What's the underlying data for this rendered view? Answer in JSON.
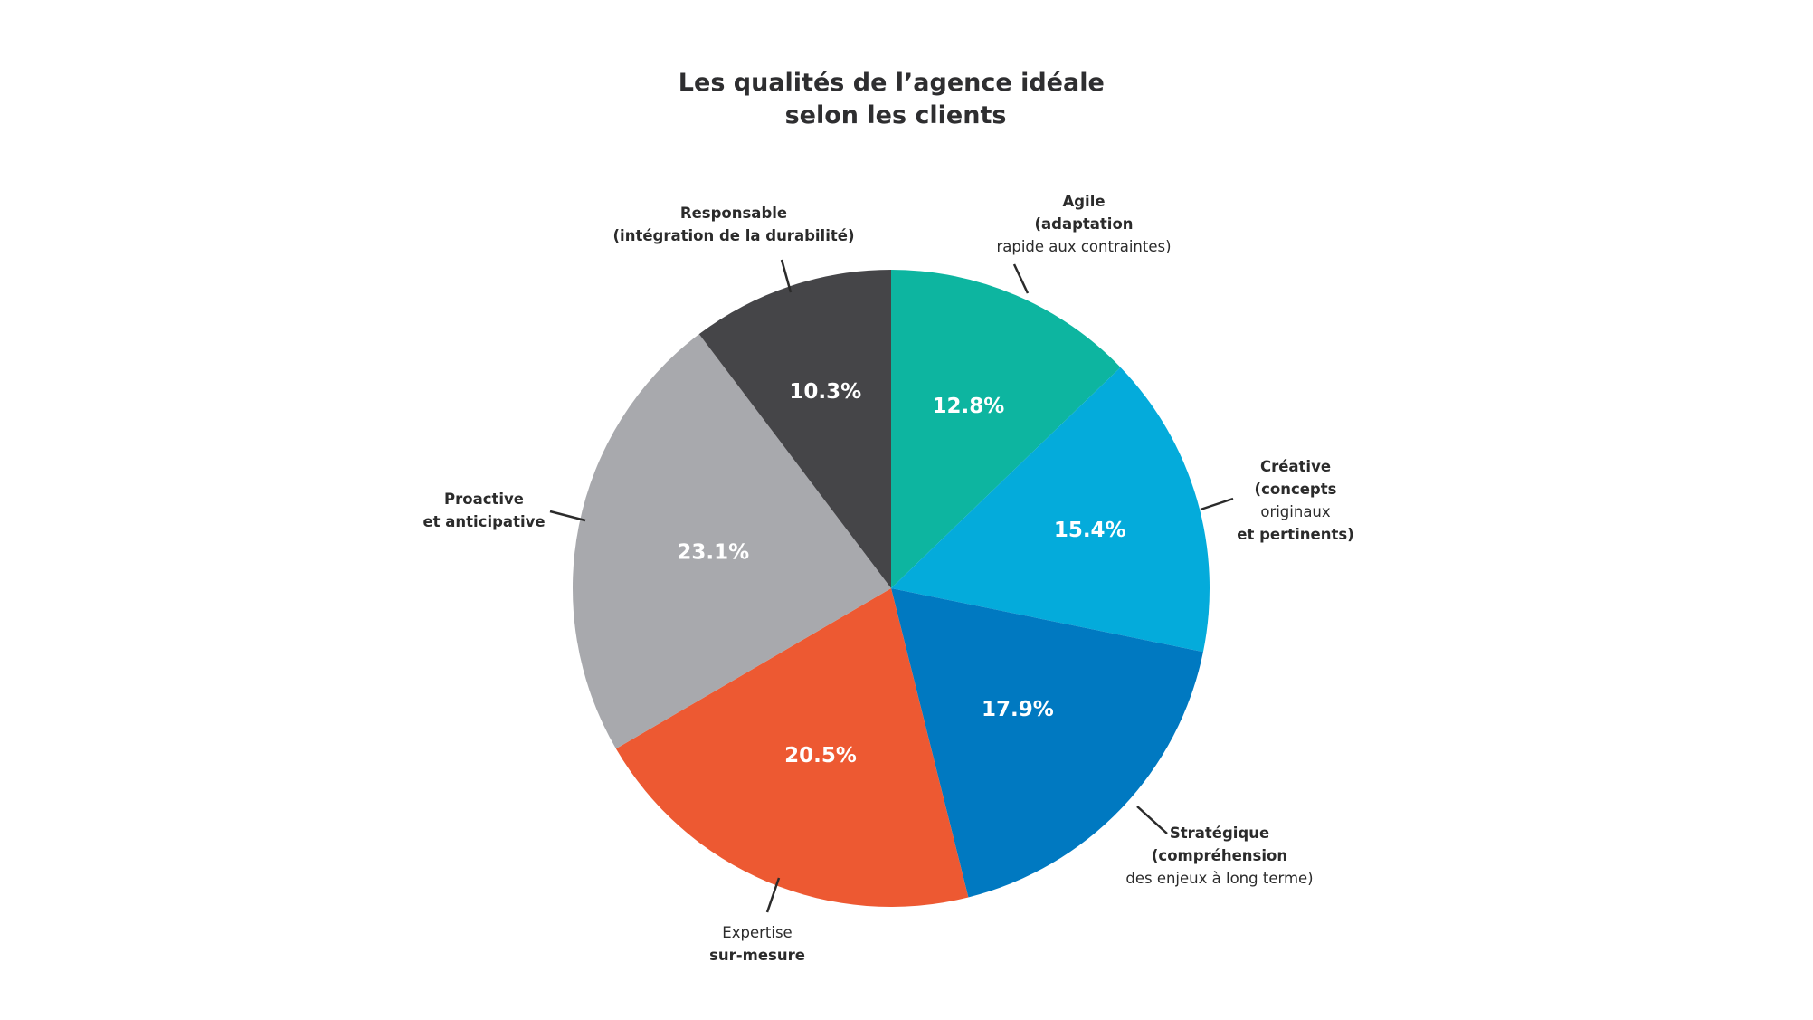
{
  "chart_data": {
    "type": "pie",
    "title_lines": [
      "Les qualités de l’agence idéale",
      "selon les clients"
    ],
    "start": "12 o'clock",
    "direction": "clockwise",
    "slices": [
      {
        "label_lines": [
          "Agile",
          "(adaptation",
          "rapide aux contraintes)"
        ],
        "value": 12.8,
        "value_label": "12.8%",
        "color": "#0db5a0"
      },
      {
        "label_lines": [
          "Créative",
          "(concepts",
          "originaux",
          "et pertinents)"
        ],
        "value": 15.4,
        "value_label": "15.4%",
        "color": "#04abdb"
      },
      {
        "label_lines": [
          "Stratégique",
          "(compréhension",
          "des enjeux à long terme)"
        ],
        "value": 17.9,
        "value_label": "17.9%",
        "color": "#0079c1"
      },
      {
        "label_lines": [
          "Expertise",
          "sur-mesure"
        ],
        "value": 20.5,
        "value_label": "20.5%",
        "color": "#ed5932"
      },
      {
        "label_lines": [
          "Proactive",
          "et anticipative"
        ],
        "value": 23.1,
        "value_label": "23.1%",
        "color": "#a8a9ad"
      },
      {
        "label_lines": [
          "Responsable",
          "(intégration de la durabilité)"
        ],
        "value": 10.3,
        "value_label": "10.3%",
        "color": "#454548"
      }
    ]
  }
}
